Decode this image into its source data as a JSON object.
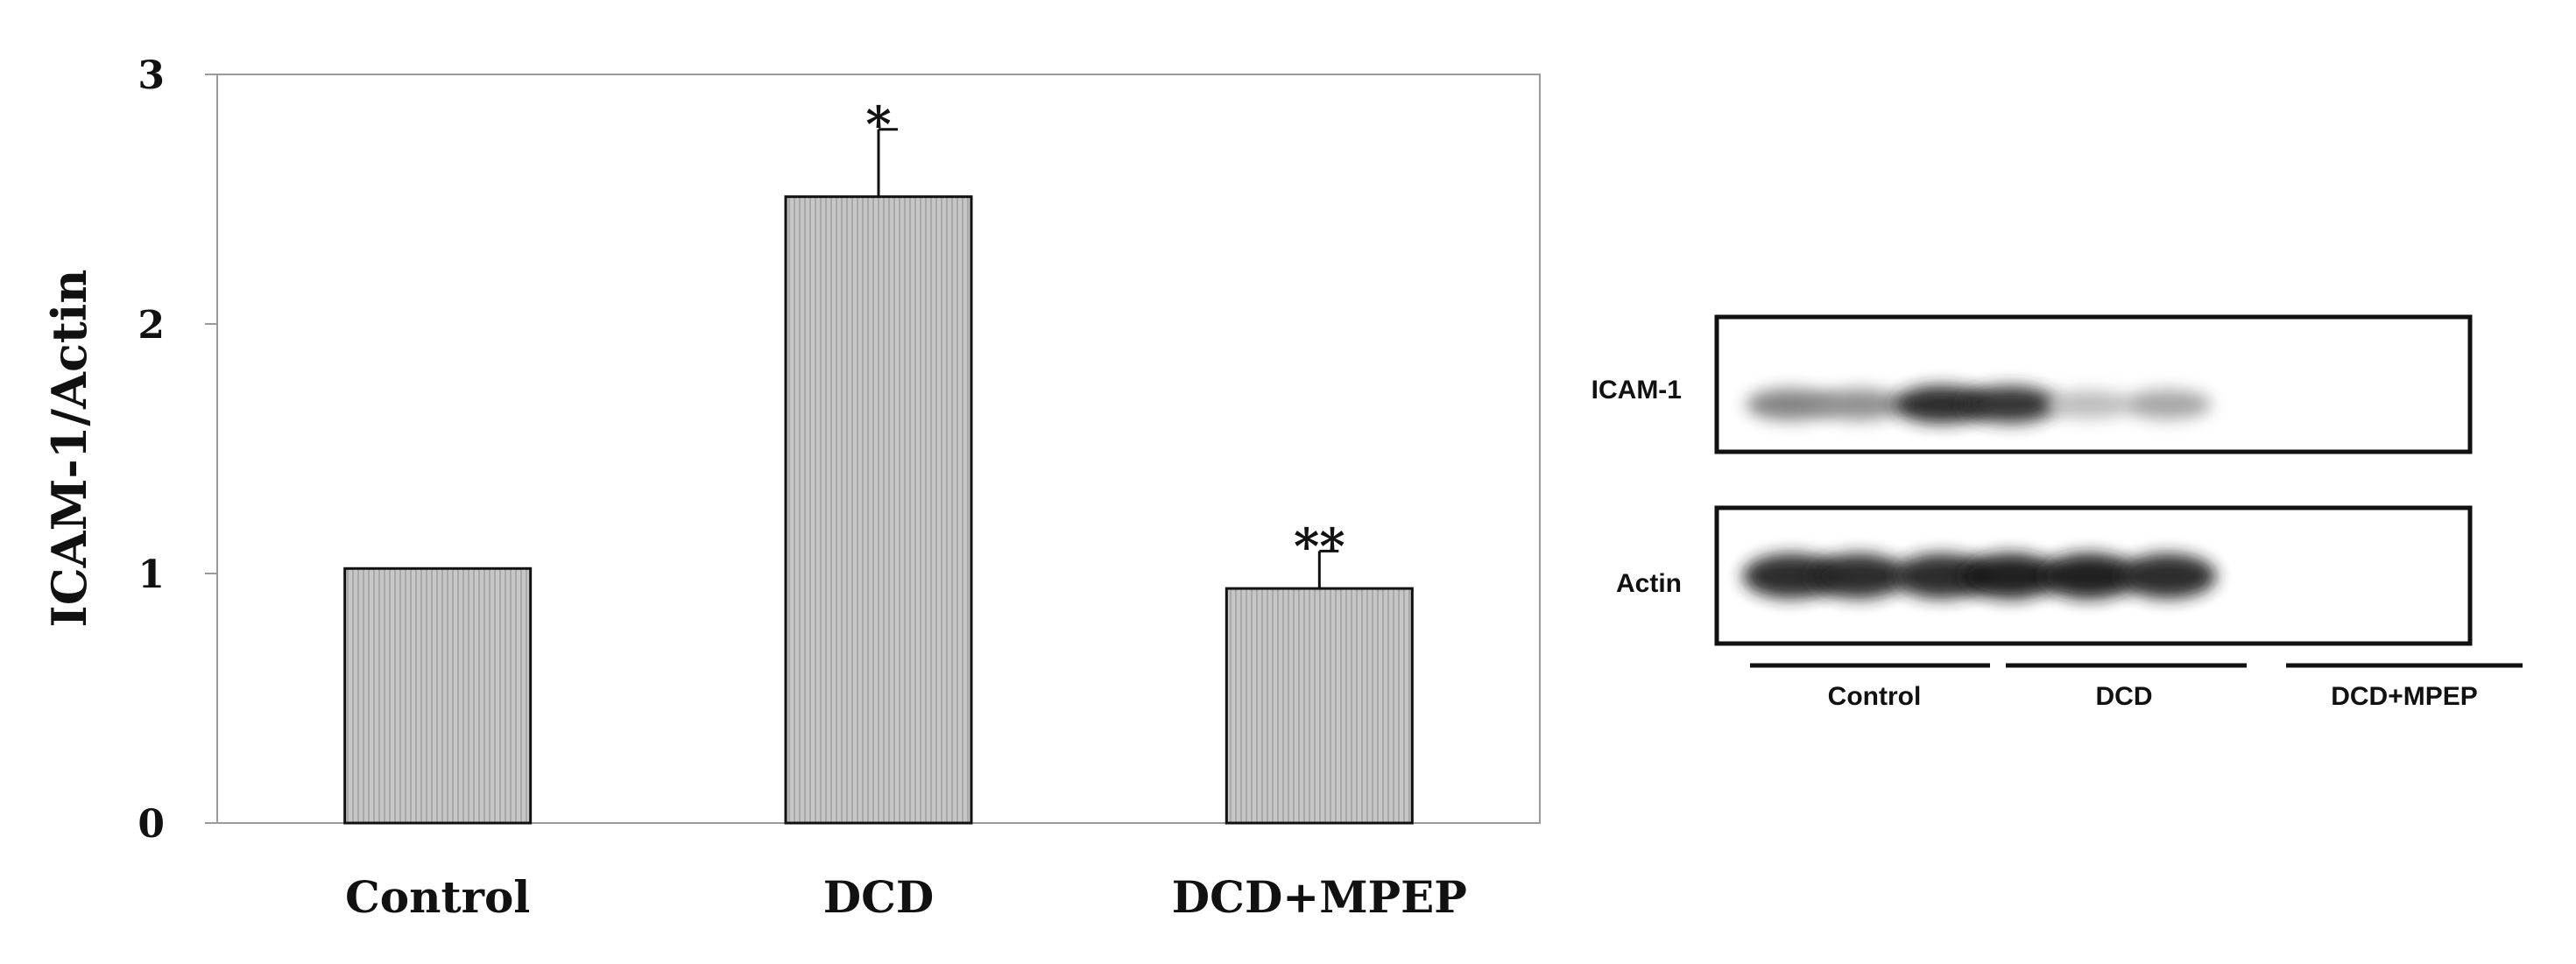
{
  "chart_data": {
    "type": "bar",
    "categories": [
      "Control",
      "DCD",
      "DCD+MPEP"
    ],
    "values": [
      1.02,
      2.51,
      0.94
    ],
    "errors": [
      0,
      0.27,
      0.15
    ],
    "significance": [
      "",
      "*",
      "**"
    ],
    "ylabel": "ICAM-1/Actin",
    "ylim": [
      0,
      3
    ],
    "yticks": [
      0,
      1,
      2,
      3
    ],
    "grid": false,
    "bar_color": "#c0c0c0"
  },
  "blot": {
    "rows": [
      {
        "label": "ICAM-1",
        "bands": [
          0.55,
          0.5,
          0.95,
          0.9,
          0.3,
          0.4
        ]
      },
      {
        "label": "Actin",
        "bands": [
          0.95,
          0.95,
          0.95,
          1.0,
          1.0,
          0.95
        ]
      }
    ],
    "groups": [
      "Control",
      "DCD",
      "DCD+MPEP"
    ]
  }
}
